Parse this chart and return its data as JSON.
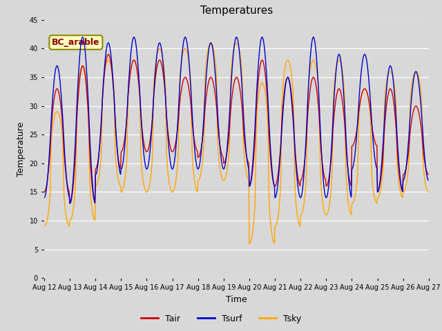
{
  "title": "Temperatures",
  "xlabel": "Time",
  "ylabel": "Temperature",
  "annotation": "BC_arable",
  "legend": [
    "Tair",
    "Tsurf",
    "Tsky"
  ],
  "colors": {
    "Tair": "#CC0000",
    "Tsurf": "#0000CC",
    "Tsky": "#FFA500"
  },
  "ylim": [
    0,
    45
  ],
  "yticks": [
    0,
    5,
    10,
    15,
    20,
    25,
    30,
    35,
    40,
    45
  ],
  "bg_color": "#D8D8D8",
  "plot_bg": "#D8D8D8",
  "n_days": 15,
  "start_day": 12,
  "points_per_day": 48
}
